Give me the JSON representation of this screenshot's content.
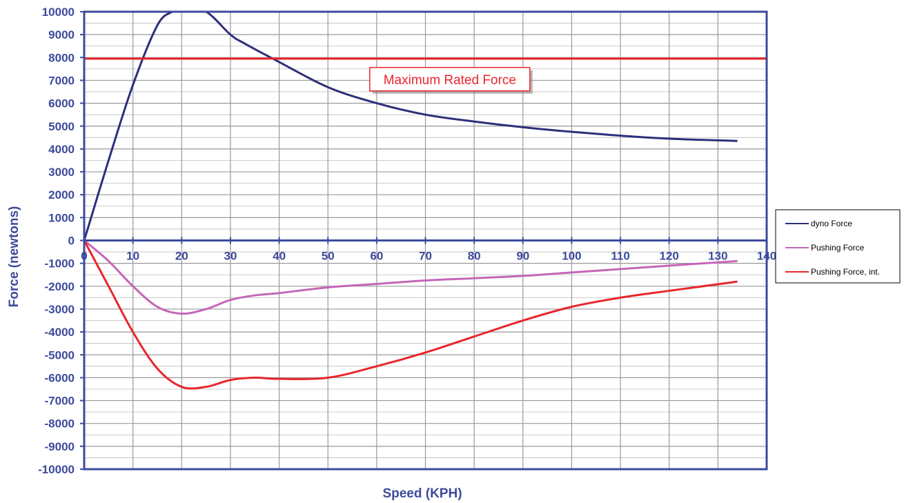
{
  "chart_data": {
    "type": "line",
    "title": "",
    "xlabel": "Speed  (KPH)",
    "ylabel": "Force  (newtons)",
    "xlim": [
      0,
      140
    ],
    "ylim": [
      -10000,
      10000
    ],
    "x_ticks": [
      0,
      10,
      20,
      30,
      40,
      50,
      60,
      70,
      80,
      90,
      100,
      110,
      120,
      130,
      140
    ],
    "y_ticks": [
      10000,
      9000,
      8000,
      7000,
      6000,
      5000,
      4000,
      3000,
      2000,
      1000,
      0,
      -1000,
      -2000,
      -3000,
      -4000,
      -5000,
      -6000,
      -7000,
      -8000,
      -9000,
      -10000
    ],
    "grid": true,
    "legend_position": "right",
    "series": [
      {
        "name": "dyno Force",
        "color": "#2c2f7a",
        "x": [
          0,
          5,
          10,
          15,
          18,
          20,
          25,
          30,
          33,
          40,
          50,
          60,
          70,
          80,
          90,
          100,
          110,
          120,
          134
        ],
        "y": [
          0,
          3500,
          6800,
          9400,
          10000,
          10200,
          10000,
          9000,
          8600,
          7800,
          6700,
          6000,
          5500,
          5200,
          4950,
          4750,
          4580,
          4450,
          4350
        ]
      },
      {
        "name": "Pushing Force",
        "color": "#c466b8",
        "x": [
          0,
          5,
          10,
          15,
          20,
          25,
          30,
          35,
          40,
          50,
          60,
          70,
          80,
          90,
          100,
          110,
          120,
          134
        ],
        "y": [
          0,
          -900,
          -2000,
          -2900,
          -3200,
          -3000,
          -2600,
          -2400,
          -2300,
          -2050,
          -1900,
          -1750,
          -1650,
          -1550,
          -1400,
          -1250,
          -1100,
          -900
        ]
      },
      {
        "name": "Pushing Force, int.",
        "color": "#e8262b",
        "x": [
          0,
          5,
          10,
          15,
          20,
          25,
          30,
          35,
          40,
          50,
          60,
          70,
          80,
          90,
          100,
          110,
          120,
          134
        ],
        "y": [
          0,
          -2000,
          -4000,
          -5600,
          -6400,
          -6400,
          -6100,
          -6000,
          -6050,
          -6000,
          -5500,
          -4900,
          -4200,
          -3500,
          -2900,
          -2500,
          -2200,
          -1800
        ]
      },
      {
        "name": "",
        "color": "#e8262b",
        "x": [
          0,
          140
        ],
        "y": [
          7950,
          7950
        ]
      }
    ],
    "annotations": [
      {
        "text": "Maximum Rated Force",
        "x": 75,
        "y": 7050,
        "color": "#e8262b"
      }
    ]
  },
  "style": {
    "axis_color": "#3c4a9b",
    "grid_color": "#999999",
    "minor_grid_color": "#bbbbbb",
    "text_color": "#3c4a9b"
  }
}
